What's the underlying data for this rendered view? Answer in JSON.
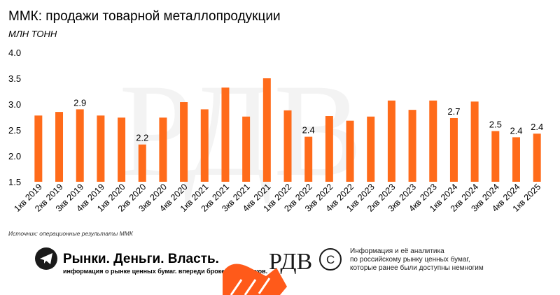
{
  "chart_data": {
    "type": "bar",
    "title": "ММК: продажи товарной металлопродукции",
    "subtitle": "МЛН ТОНН",
    "categories": [
      "1кв 2019",
      "2кв 2019",
      "3кв 2019",
      "4кв 2019",
      "1кв 2020",
      "2кв 2020",
      "3кв 2020",
      "4кв 2020",
      "1кв 2021",
      "2кв 2021",
      "3кв 2021",
      "4кв 2021",
      "1кв 2022",
      "2кв 2022",
      "3кв 2022",
      "4кв 2022",
      "1кв 2023",
      "2кв 2023",
      "3кв 2023",
      "4кв 2023",
      "1кв 2024",
      "2кв 2024",
      "3кв 2024",
      "4кв 2024",
      "1кв 2025"
    ],
    "values": [
      2.78,
      2.85,
      2.9,
      2.78,
      2.74,
      2.22,
      2.74,
      3.04,
      2.9,
      3.32,
      2.76,
      3.5,
      2.88,
      2.37,
      2.77,
      2.68,
      2.76,
      3.07,
      2.89,
      3.07,
      2.73,
      3.05,
      2.48,
      2.36,
      2.43
    ],
    "data_labels": {
      "2": "2.9",
      "5": "2.2",
      "13": "2.4",
      "20": "2.7",
      "22": "2.5",
      "23": "2.4",
      "24": "2.4"
    },
    "yticks": [
      "1.5",
      "2.0",
      "2.5",
      "3.0",
      "3.5",
      "4.0"
    ],
    "ylim": [
      1.5,
      4.0
    ],
    "grid": false,
    "colors": {
      "bar": "#ff6b1a",
      "text": "#1a1a1a"
    }
  },
  "source": "Источник: операционные результаты ММК",
  "footer": {
    "brand_name": "Рынки. Деньги. Власть.",
    "brand_tagline": "информация о рынке ценных бумаг. впереди брокеров и банков.",
    "brand_icon": "telegram-icon",
    "logo_text": "РДВ",
    "info_lines": [
      "Информация и её аналитика",
      "по российскому рынку ценных бумаг,",
      "которые ранее были доступны немногим"
    ]
  }
}
